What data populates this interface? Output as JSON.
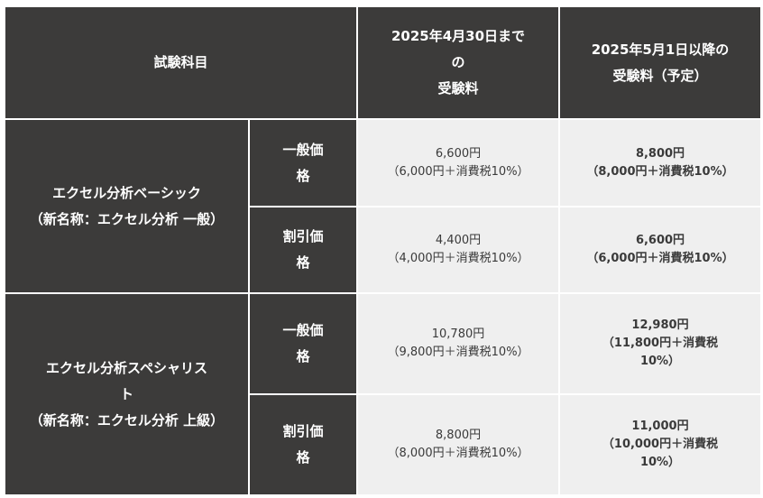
{
  "header": {
    "subject": "試験科目",
    "col_before": [
      "2025年4月30日まで",
      "の",
      "受験料"
    ],
    "col_after": [
      "2025年5月1日以降の",
      "受験料（予定）"
    ]
  },
  "rows": [
    {
      "subject": [
        "エクセル分析ベーシック",
        "（新名称：エクセル分析 一般）"
      ],
      "prices": [
        {
          "type": [
            "一般価",
            "格"
          ],
          "before": [
            "6,600円",
            "（6,000円＋消費税10%）"
          ],
          "after": [
            "8,800円",
            "（8,000円＋消費税10%）"
          ]
        },
        {
          "type": [
            "割引価",
            "格"
          ],
          "before": [
            "4,400円",
            "（4,000円＋消費税10%）"
          ],
          "after": [
            "6,600円",
            "（6,000円＋消費税10%）"
          ]
        }
      ]
    },
    {
      "subject": [
        "エクセル分析スペシャリス",
        "ト",
        "（新名称：エクセル分析 上級）"
      ],
      "prices": [
        {
          "type": [
            "一般価",
            "格"
          ],
          "before": [
            "10,780円",
            "（9,800円＋消費税10%）"
          ],
          "after": [
            "12,980円",
            "（11,800円＋消費税",
            "10%）"
          ]
        },
        {
          "type": [
            "割引価",
            "格"
          ],
          "before": [
            "8,800円",
            "（8,000円＋消費税10%）"
          ],
          "after": [
            "11,000円",
            "（10,000円＋消費税",
            "10%）"
          ]
        }
      ]
    }
  ]
}
